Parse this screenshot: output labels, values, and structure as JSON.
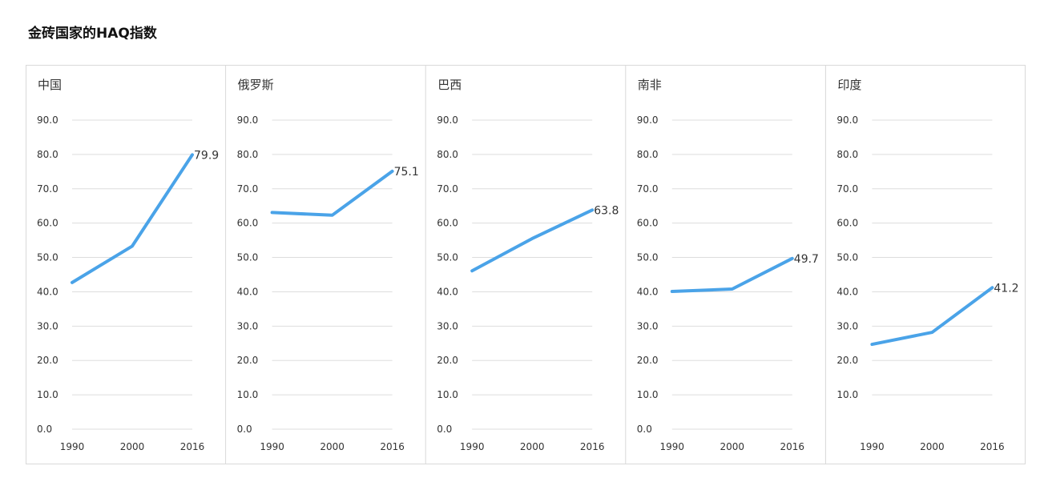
{
  "page": {
    "title": "金砖国家的HAQ指数"
  },
  "chart_data": [
    {
      "type": "line",
      "title": "中国",
      "categories": [
        "1990",
        "2000",
        "2016"
      ],
      "values": [
        42.7,
        53.3,
        79.9
      ],
      "end_label": "79.9",
      "ylim": [
        0,
        90
      ],
      "yticks": [
        "0.0",
        "10.0",
        "20.0",
        "30.0",
        "40.0",
        "50.0",
        "60.0",
        "70.0",
        "80.0",
        "90.0"
      ],
      "color": "#4aa3e8",
      "grid": true
    },
    {
      "type": "line",
      "title": "俄罗斯",
      "categories": [
        "1990",
        "2000",
        "2016"
      ],
      "values": [
        63.1,
        62.3,
        75.1
      ],
      "end_label": "75.1",
      "ylim": [
        0,
        90
      ],
      "yticks": [
        "0.0",
        "10.0",
        "20.0",
        "30.0",
        "40.0",
        "50.0",
        "60.0",
        "70.0",
        "80.0",
        "90.0"
      ],
      "color": "#4aa3e8",
      "grid": true
    },
    {
      "type": "line",
      "title": "巴西",
      "categories": [
        "1990",
        "2000",
        "2016"
      ],
      "values": [
        46.1,
        55.5,
        63.8
      ],
      "end_label": "63.8",
      "ylim": [
        0,
        90
      ],
      "yticks": [
        "0.0",
        "10.0",
        "20.0",
        "30.0",
        "40.0",
        "50.0",
        "60.0",
        "70.0",
        "80.0",
        "90.0"
      ],
      "color": "#4aa3e8",
      "grid": true
    },
    {
      "type": "line",
      "title": "南非",
      "categories": [
        "1990",
        "2000",
        "2016"
      ],
      "values": [
        40.1,
        40.8,
        49.7
      ],
      "end_label": "49.7",
      "ylim": [
        0,
        90
      ],
      "yticks": [
        "0.0",
        "10.0",
        "20.0",
        "30.0",
        "40.0",
        "50.0",
        "60.0",
        "70.0",
        "80.0",
        "90.0"
      ],
      "color": "#4aa3e8",
      "grid": true
    },
    {
      "type": "line",
      "title": "印度",
      "categories": [
        "1990",
        "2000",
        "2016"
      ],
      "values": [
        24.7,
        28.2,
        41.2
      ],
      "end_label": "41.2",
      "ylim": [
        0,
        90
      ],
      "yticks": [
        "10.0",
        "20.0",
        "30.0",
        "40.0",
        "50.0",
        "60.0",
        "70.0",
        "80.0",
        "90.0"
      ],
      "color": "#4aa3e8",
      "grid": true
    }
  ]
}
